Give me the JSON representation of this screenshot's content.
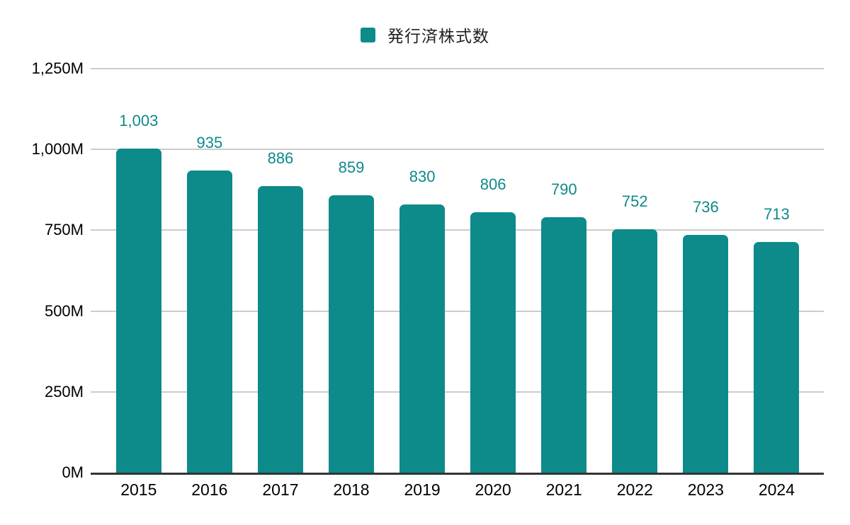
{
  "legend": {
    "label": "発行済株式数",
    "swatch_color": "#0d8a8a"
  },
  "chart_data": {
    "type": "bar",
    "title": "",
    "xlabel": "",
    "ylabel": "",
    "categories": [
      "2015",
      "2016",
      "2017",
      "2018",
      "2019",
      "2020",
      "2021",
      "2022",
      "2023",
      "2024"
    ],
    "series": [
      {
        "name": "発行済株式数",
        "values": [
          1003,
          935,
          886,
          859,
          830,
          806,
          790,
          752,
          736,
          713
        ]
      }
    ],
    "value_labels": [
      "1,003",
      "935",
      "886",
      "859",
      "830",
      "806",
      "790",
      "752",
      "736",
      "713"
    ],
    "ylim": [
      0,
      1250
    ],
    "yticks": [
      {
        "value": 0,
        "label": "0M"
      },
      {
        "value": 250,
        "label": "250M"
      },
      {
        "value": 500,
        "label": "500M"
      },
      {
        "value": 750,
        "label": "750M"
      },
      {
        "value": 1000,
        "label": "1,000M"
      },
      {
        "value": 1250,
        "label": "1,250M"
      }
    ],
    "grid": true,
    "legend_position": "top",
    "colors": {
      "bar": "#0d8a8a",
      "value_label": "#0d8a8a",
      "gridline": "#cccccc",
      "axis_line": "#333333",
      "tick_label": "#000000",
      "background": "#ffffff"
    }
  }
}
